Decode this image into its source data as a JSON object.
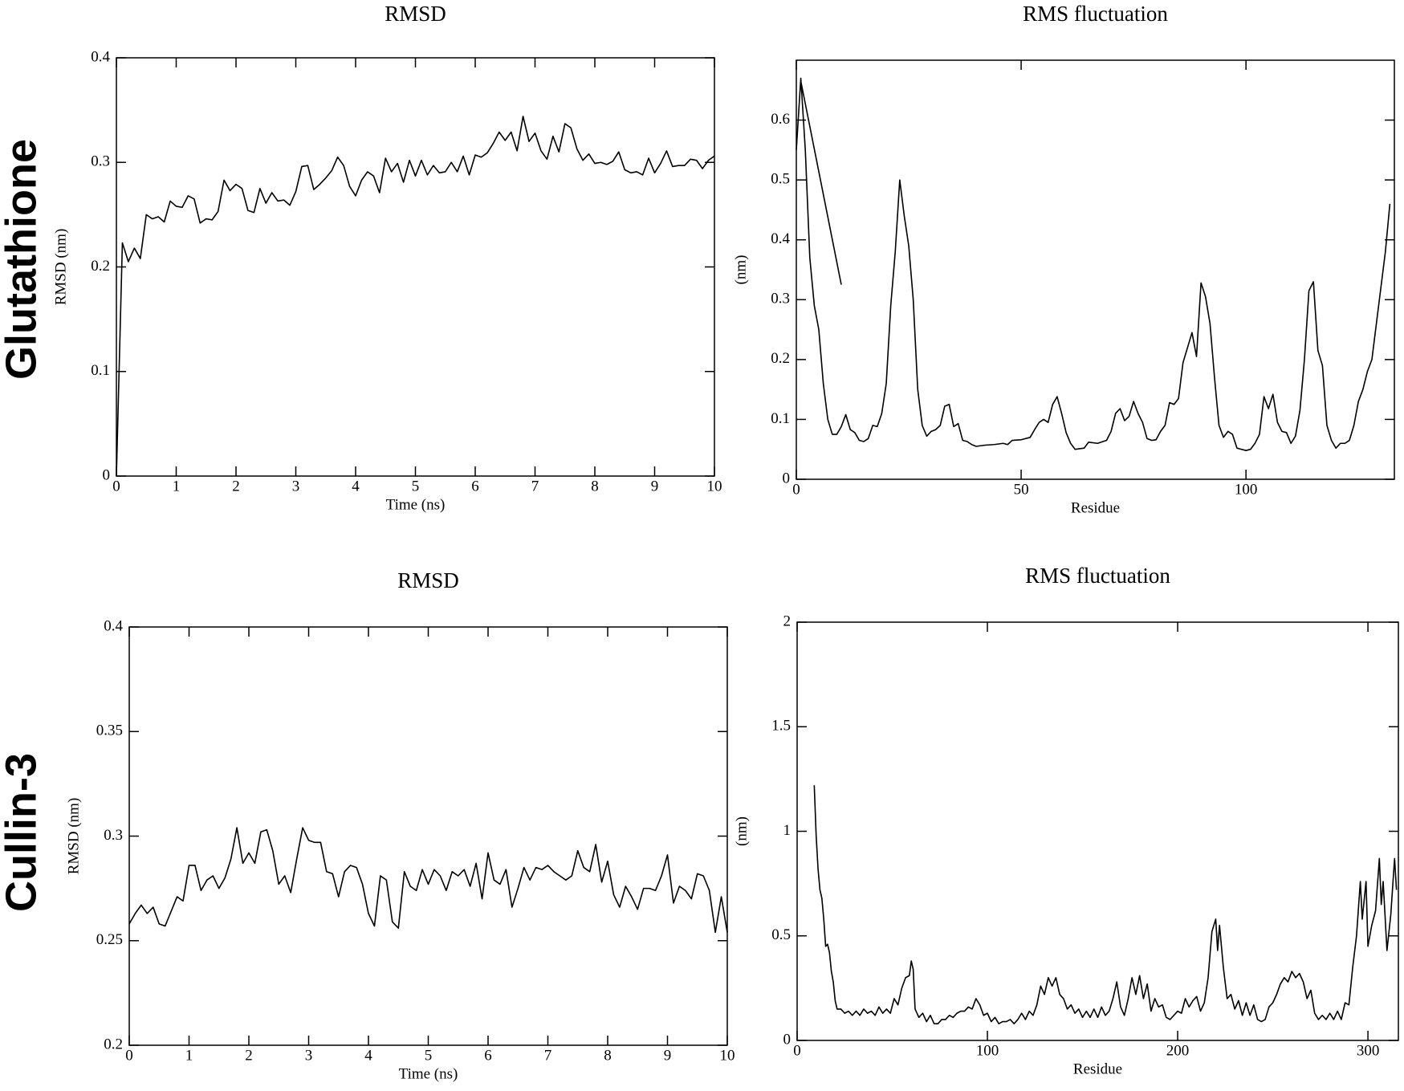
{
  "row_labels": [
    "Glutathione",
    "Cullin-3"
  ],
  "chart_data": [
    {
      "type": "line",
      "title": "RMSD",
      "xlabel": "Time (ns)",
      "ylabel": "RMSD (nm)",
      "color": "#000000",
      "xlim": [
        0,
        10
      ],
      "ylim": [
        0,
        0.4
      ],
      "xticks": [
        0,
        1,
        2,
        3,
        4,
        5,
        6,
        7,
        8,
        9,
        10
      ],
      "yticks": [
        0,
        0.1,
        0.2,
        0.3,
        0.4
      ],
      "x": [
        0,
        0.1,
        0.2,
        0.3,
        0.4,
        0.5,
        0.6,
        0.7,
        0.8,
        0.9,
        1,
        1.1,
        1.2,
        1.3,
        1.4,
        1.5,
        1.6,
        1.7,
        1.8,
        1.9,
        2,
        2.1,
        2.2,
        2.3,
        2.4,
        2.5,
        2.6,
        2.7,
        2.8,
        2.9,
        3,
        3.1,
        3.2,
        3.3,
        3.4,
        3.5,
        3.6,
        3.7,
        3.8,
        3.9,
        4,
        4.1,
        4.2,
        4.3,
        4.4,
        4.5,
        4.6,
        4.7,
        4.8,
        4.9,
        5,
        5.1,
        5.2,
        5.3,
        5.4,
        5.5,
        5.6,
        5.7,
        5.8,
        5.9,
        6,
        6.1,
        6.2,
        6.3,
        6.4,
        6.5,
        6.6,
        6.7,
        6.8,
        6.9,
        7,
        7.1,
        7.2,
        7.3,
        7.4,
        7.5,
        7.6,
        7.7,
        7.8,
        7.9,
        8,
        8.1,
        8.2,
        8.3,
        8.4,
        8.5,
        8.6,
        8.7,
        8.8,
        8.9,
        9,
        9.1,
        9.2,
        9.3,
        9.4,
        9.5,
        9.6,
        9.7,
        9.8,
        9.9,
        10
      ],
      "values": [
        0,
        0.223,
        0.205,
        0.218,
        0.208,
        0.25,
        0.246,
        0.248,
        0.243,
        0.263,
        0.258,
        0.257,
        0.268,
        0.265,
        0.242,
        0.246,
        0.245,
        0.253,
        0.283,
        0.273,
        0.279,
        0.275,
        0.254,
        0.252,
        0.275,
        0.261,
        0.271,
        0.263,
        0.264,
        0.259,
        0.272,
        0.296,
        0.297,
        0.274,
        0.279,
        0.285,
        0.292,
        0.305,
        0.297,
        0.277,
        0.268,
        0.283,
        0.291,
        0.287,
        0.271,
        0.304,
        0.291,
        0.299,
        0.281,
        0.302,
        0.287,
        0.302,
        0.288,
        0.297,
        0.29,
        0.291,
        0.3,
        0.291,
        0.306,
        0.288,
        0.307,
        0.305,
        0.309,
        0.318,
        0.329,
        0.321,
        0.329,
        0.311,
        0.344,
        0.32,
        0.328,
        0.311,
        0.303,
        0.325,
        0.31,
        0.337,
        0.333,
        0.313,
        0.302,
        0.308,
        0.299,
        0.3,
        0.298,
        0.301,
        0.31,
        0.293,
        0.29,
        0.291,
        0.288,
        0.304,
        0.29,
        0.299,
        0.311,
        0.296,
        0.297,
        0.297,
        0.303,
        0.302,
        0.294,
        0.302,
        0.306
      ]
    },
    {
      "type": "line",
      "title": "RMS fluctuation",
      "xlabel": "Residue",
      "ylabel": "(nm)",
      "color": "#000000",
      "xlim": [
        0,
        133
      ],
      "ylim": [
        0,
        0.7
      ],
      "xticks": [
        0,
        50,
        100
      ],
      "yticks": [
        0,
        0.1,
        0.2,
        0.3,
        0.4,
        0.5,
        0.6
      ],
      "x": [
        0,
        1,
        2,
        3,
        4,
        5,
        6,
        7,
        8,
        9,
        10,
        11,
        12,
        13,
        14,
        15,
        16,
        17,
        18,
        19,
        20,
        21,
        22,
        23,
        24,
        25,
        26,
        27,
        28,
        29,
        30,
        31,
        32,
        33,
        34,
        35,
        36,
        37,
        38,
        39,
        40,
        42,
        44,
        46,
        47,
        48,
        50,
        52,
        53,
        54,
        55,
        56,
        57,
        58,
        59,
        60,
        61,
        62,
        64,
        65,
        67,
        69,
        70,
        71,
        72,
        73,
        74,
        75,
        76,
        77,
        78,
        79,
        80,
        81,
        82,
        83,
        84,
        85,
        86,
        87,
        88,
        89,
        90,
        91,
        92,
        93,
        94,
        95,
        96,
        97,
        98,
        100,
        101,
        102,
        103,
        104,
        105,
        106,
        107,
        108,
        109,
        110,
        111,
        112,
        113,
        114,
        115,
        116,
        117,
        118,
        119,
        120,
        121,
        122,
        123,
        124,
        125,
        126,
        127,
        128,
        129,
        130,
        131,
        132,
        1,
        1,
        10
      ],
      "values": [
        0.55,
        0.67,
        0.55,
        0.37,
        0.29,
        0.25,
        0.16,
        0.1,
        0.075,
        0.075,
        0.088,
        0.108,
        0.083,
        0.078,
        0.065,
        0.063,
        0.068,
        0.09,
        0.088,
        0.11,
        0.16,
        0.29,
        0.38,
        0.5,
        0.44,
        0.39,
        0.3,
        0.15,
        0.09,
        0.072,
        0.08,
        0.083,
        0.09,
        0.122,
        0.125,
        0.088,
        0.093,
        0.065,
        0.063,
        0.058,
        0.055,
        0.057,
        0.058,
        0.06,
        0.058,
        0.065,
        0.066,
        0.07,
        0.083,
        0.095,
        0.1,
        0.095,
        0.125,
        0.138,
        0.11,
        0.078,
        0.06,
        0.05,
        0.052,
        0.062,
        0.06,
        0.065,
        0.08,
        0.11,
        0.118,
        0.098,
        0.105,
        0.13,
        0.11,
        0.095,
        0.068,
        0.065,
        0.066,
        0.08,
        0.09,
        0.128,
        0.125,
        0.135,
        0.195,
        0.22,
        0.245,
        0.205,
        0.328,
        0.305,
        0.26,
        0.17,
        0.09,
        0.07,
        0.08,
        0.075,
        0.052,
        0.048,
        0.05,
        0.06,
        0.075,
        0.138,
        0.118,
        0.142,
        0.095,
        0.08,
        0.078,
        0.06,
        0.072,
        0.115,
        0.2,
        0.315,
        0.33,
        0.215,
        0.19,
        0.09,
        0.065,
        0.052,
        0.06,
        0.06,
        0.065,
        0.09,
        0.13,
        0.15,
        0.18,
        0.2,
        0.26,
        0.32,
        0.38,
        0.46,
        null,
        0.665,
        0.325
      ]
    },
    {
      "type": "line",
      "title": "RMSD",
      "xlabel": "Time (ns)",
      "ylabel": "RMSD (nm)",
      "color": "#000000",
      "xlim": [
        0,
        10
      ],
      "ylim": [
        0.2,
        0.4
      ],
      "xticks": [
        0,
        1,
        2,
        3,
        4,
        5,
        6,
        7,
        8,
        9,
        10
      ],
      "yticks": [
        0.2,
        0.25,
        0.3,
        0.35,
        0.4
      ],
      "x": [
        0,
        0.1,
        0.2,
        0.3,
        0.4,
        0.5,
        0.6,
        0.7,
        0.8,
        0.9,
        1,
        1.1,
        1.2,
        1.3,
        1.4,
        1.5,
        1.6,
        1.7,
        1.8,
        1.9,
        2,
        2.1,
        2.2,
        2.3,
        2.4,
        2.5,
        2.6,
        2.7,
        2.8,
        2.9,
        3,
        3.1,
        3.2,
        3.3,
        3.4,
        3.5,
        3.6,
        3.7,
        3.8,
        3.9,
        4,
        4.1,
        4.2,
        4.3,
        4.4,
        4.5,
        4.6,
        4.7,
        4.8,
        4.9,
        5,
        5.1,
        5.2,
        5.3,
        5.4,
        5.5,
        5.6,
        5.7,
        5.8,
        5.9,
        6,
        6.1,
        6.2,
        6.3,
        6.4,
        6.5,
        6.6,
        6.7,
        6.8,
        6.9,
        7,
        7.1,
        7.2,
        7.3,
        7.4,
        7.5,
        7.6,
        7.7,
        7.8,
        7.9,
        8,
        8.1,
        8.2,
        8.3,
        8.4,
        8.5,
        8.6,
        8.7,
        8.8,
        8.9,
        9,
        9.1,
        9.2,
        9.3,
        9.4,
        9.5,
        9.6,
        9.7,
        9.8,
        9.9,
        10
      ],
      "values": [
        0.258,
        0.263,
        0.267,
        0.263,
        0.266,
        0.258,
        0.257,
        0.264,
        0.271,
        0.269,
        0.286,
        0.286,
        0.274,
        0.279,
        0.281,
        0.275,
        0.28,
        0.289,
        0.304,
        0.287,
        0.292,
        0.287,
        0.302,
        0.303,
        0.293,
        0.277,
        0.281,
        0.273,
        0.289,
        0.304,
        0.298,
        0.297,
        0.297,
        0.283,
        0.282,
        0.271,
        0.283,
        0.286,
        0.285,
        0.277,
        0.263,
        0.257,
        0.281,
        0.279,
        0.259,
        0.256,
        0.283,
        0.276,
        0.274,
        0.284,
        0.277,
        0.284,
        0.281,
        0.274,
        0.283,
        0.281,
        0.284,
        0.276,
        0.287,
        0.27,
        0.292,
        0.279,
        0.277,
        0.284,
        0.266,
        0.275,
        0.285,
        0.279,
        0.285,
        0.284,
        0.286,
        0.283,
        0.281,
        0.279,
        0.281,
        0.293,
        0.285,
        0.283,
        0.296,
        0.278,
        0.288,
        0.272,
        0.266,
        0.276,
        0.271,
        0.265,
        0.275,
        0.275,
        0.274,
        0.281,
        0.291,
        0.268,
        0.276,
        0.274,
        0.27,
        0.282,
        0.281,
        0.274,
        0.254,
        0.271,
        0.254
      ]
    },
    {
      "type": "line",
      "title": "RMS fluctuation",
      "xlabel": "Residue",
      "ylabel": "(nm)",
      "color": "#000000",
      "xlim": [
        0,
        316
      ],
      "ylim": [
        0,
        2
      ],
      "xticks": [
        0,
        100,
        200,
        300
      ],
      "yticks": [
        0,
        0.5,
        1,
        1.5,
        2
      ],
      "x": [
        9,
        10,
        11,
        12,
        13,
        14,
        15,
        16,
        17,
        18,
        19,
        20,
        21,
        23,
        25,
        27,
        29,
        31,
        33,
        35,
        37,
        39,
        41,
        43,
        45,
        47,
        49,
        51,
        53,
        55,
        57,
        59,
        60,
        61,
        62,
        64,
        66,
        68,
        70,
        72,
        74,
        76,
        78,
        80,
        82,
        84,
        86,
        88,
        90,
        92,
        94,
        96,
        98,
        100,
        102,
        104,
        106,
        108,
        110,
        112,
        114,
        116,
        118,
        120,
        122,
        124,
        126,
        128,
        130,
        132,
        134,
        136,
        138,
        140,
        142,
        144,
        146,
        148,
        150,
        152,
        154,
        156,
        158,
        160,
        162,
        164,
        166,
        168,
        170,
        172,
        174,
        176,
        178,
        180,
        182,
        184,
        186,
        188,
        190,
        192,
        194,
        196,
        198,
        200,
        202,
        204,
        206,
        208,
        210,
        212,
        214,
        216,
        218,
        220,
        221,
        222,
        224,
        226,
        228,
        230,
        232,
        234,
        236,
        238,
        240,
        242,
        244,
        246,
        248,
        250,
        252,
        254,
        256,
        258,
        260,
        262,
        264,
        266,
        268,
        270,
        272,
        274,
        276,
        278,
        280,
        282,
        284,
        286,
        288,
        290,
        292,
        294,
        296,
        297,
        299,
        300,
        302,
        304,
        306,
        307,
        308,
        310,
        312,
        314,
        315
      ],
      "values": [
        1.22,
        0.98,
        0.82,
        0.72,
        0.68,
        0.58,
        0.45,
        0.46,
        0.42,
        0.33,
        0.28,
        0.19,
        0.15,
        0.15,
        0.13,
        0.14,
        0.12,
        0.14,
        0.12,
        0.15,
        0.13,
        0.14,
        0.12,
        0.16,
        0.13,
        0.15,
        0.13,
        0.2,
        0.17,
        0.25,
        0.3,
        0.31,
        0.38,
        0.34,
        0.15,
        0.11,
        0.13,
        0.09,
        0.12,
        0.08,
        0.08,
        0.1,
        0.1,
        0.12,
        0.11,
        0.13,
        0.14,
        0.14,
        0.16,
        0.15,
        0.2,
        0.17,
        0.12,
        0.13,
        0.09,
        0.11,
        0.08,
        0.09,
        0.09,
        0.1,
        0.08,
        0.1,
        0.13,
        0.1,
        0.14,
        0.12,
        0.17,
        0.26,
        0.22,
        0.3,
        0.26,
        0.3,
        0.22,
        0.2,
        0.15,
        0.17,
        0.13,
        0.15,
        0.11,
        0.14,
        0.11,
        0.15,
        0.11,
        0.16,
        0.12,
        0.14,
        0.2,
        0.28,
        0.16,
        0.12,
        0.2,
        0.3,
        0.22,
        0.31,
        0.2,
        0.27,
        0.14,
        0.2,
        0.16,
        0.17,
        0.11,
        0.1,
        0.12,
        0.14,
        0.13,
        0.2,
        0.16,
        0.19,
        0.21,
        0.14,
        0.18,
        0.3,
        0.52,
        0.58,
        0.43,
        0.55,
        0.35,
        0.2,
        0.22,
        0.15,
        0.19,
        0.12,
        0.18,
        0.12,
        0.17,
        0.1,
        0.09,
        0.1,
        0.16,
        0.18,
        0.22,
        0.27,
        0.3,
        0.28,
        0.33,
        0.3,
        0.32,
        0.28,
        0.2,
        0.24,
        0.13,
        0.1,
        0.12,
        0.1,
        0.13,
        0.1,
        0.14,
        0.1,
        0.18,
        0.17,
        0.35,
        0.5,
        0.76,
        0.58,
        0.76,
        0.45,
        0.55,
        0.62,
        0.87,
        0.65,
        0.76,
        0.43,
        0.6,
        0.87,
        0.72
      ]
    }
  ]
}
